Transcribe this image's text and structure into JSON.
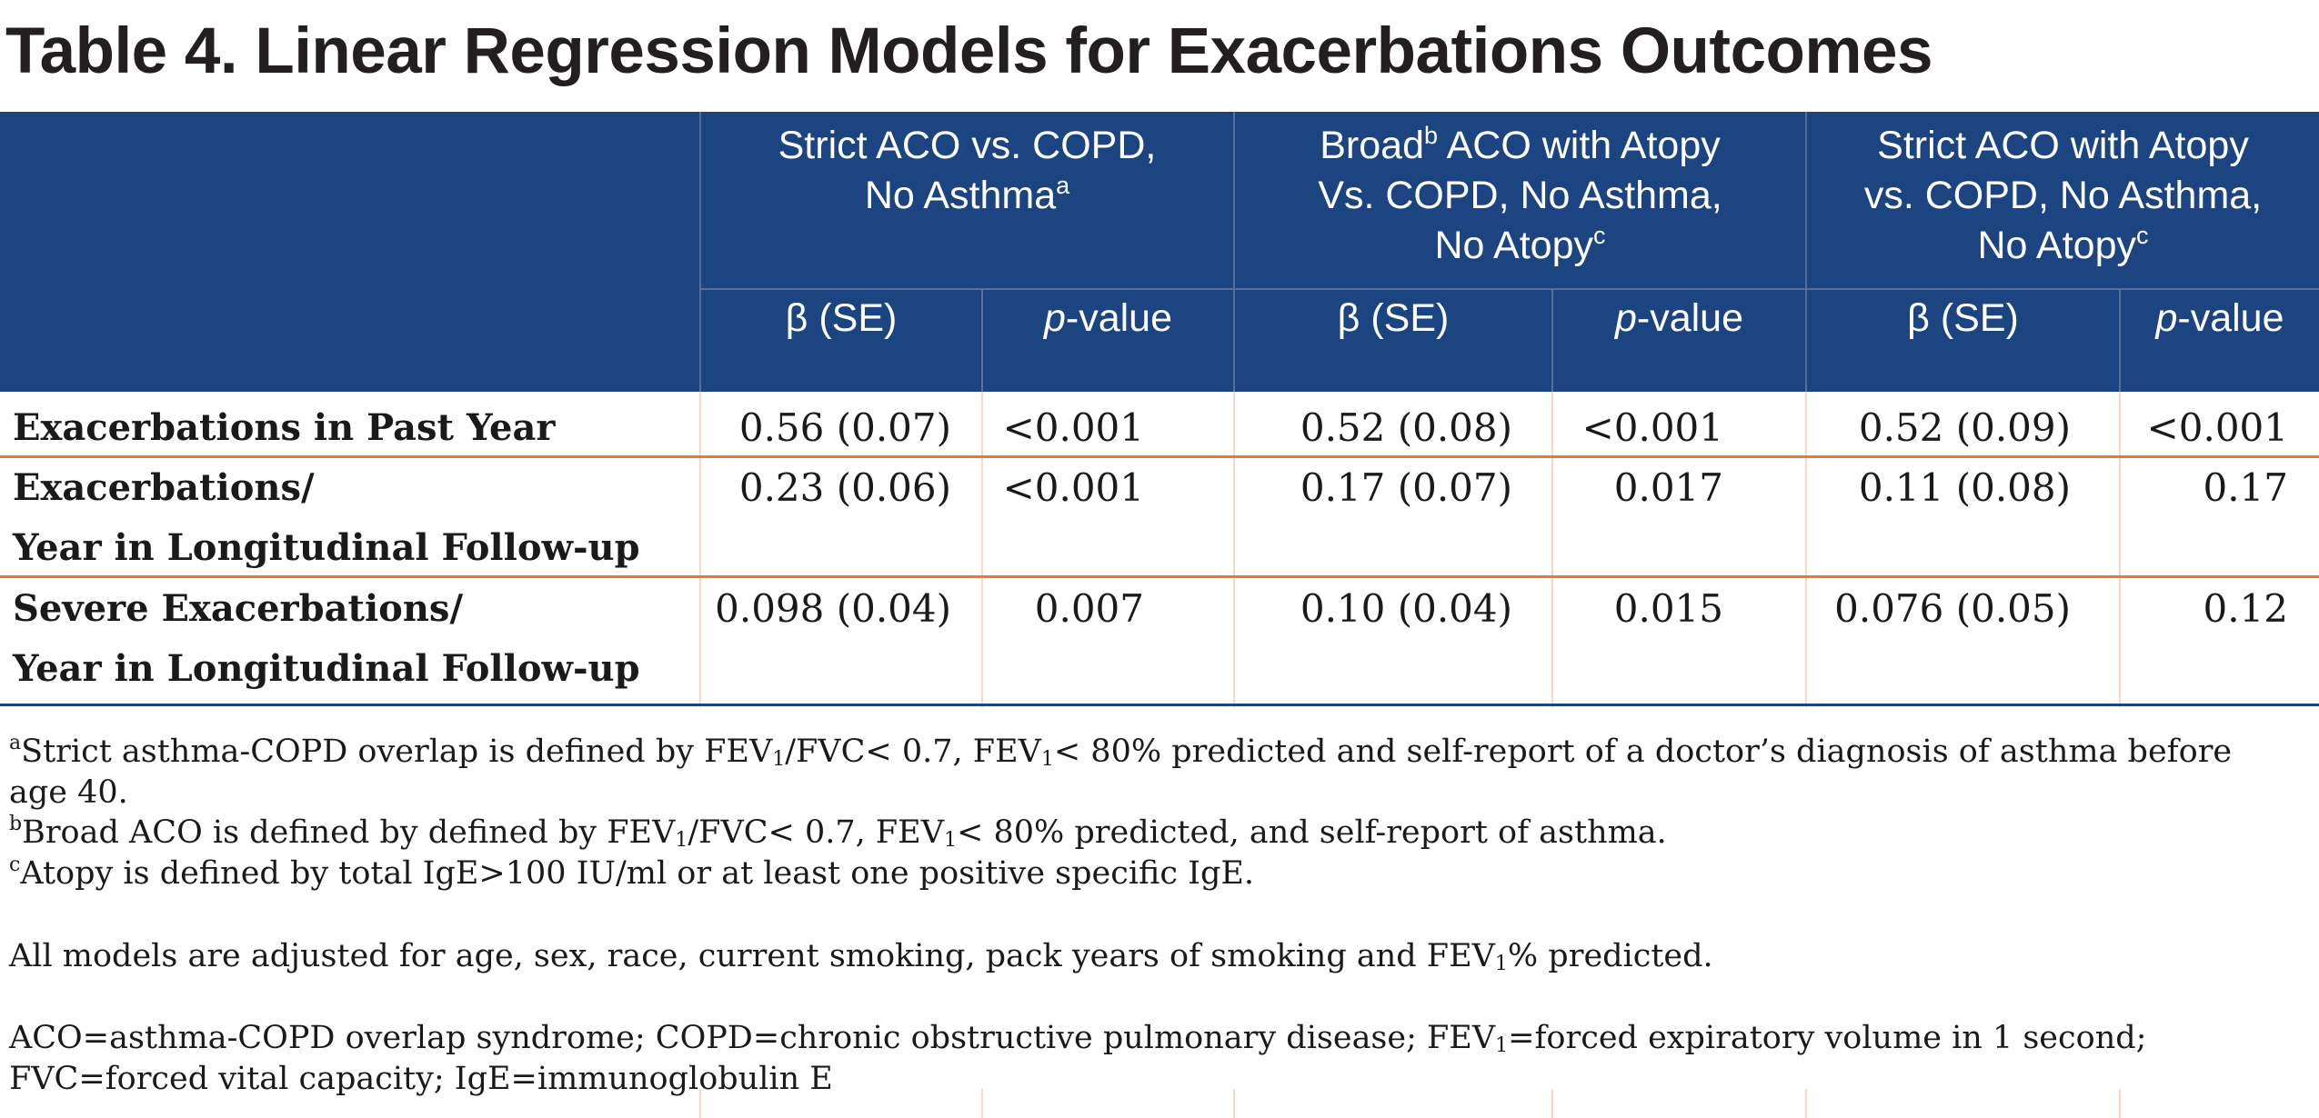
{
  "title": "Table 4. Linear Regression Models for Exacerbations Outcomes",
  "groups": [
    {
      "lines": [
        {
          "pre": "Strict ACO vs. COPD,",
          "sup": "",
          "post": ""
        },
        {
          "pre": "No Asthma",
          "sup": "a",
          "post": ""
        }
      ]
    },
    {
      "lines": [
        {
          "pre": "Broad",
          "sup": "b",
          "post": " ACO with Atopy"
        },
        {
          "pre": "Vs. COPD, No Asthma,",
          "sup": "",
          "post": ""
        },
        {
          "pre": "No Atopy",
          "sup": "c",
          "post": ""
        }
      ]
    },
    {
      "lines": [
        {
          "pre": "Strict ACO with Atopy",
          "sup": "",
          "post": ""
        },
        {
          "pre": "vs. COPD, No Asthma,",
          "sup": "",
          "post": ""
        },
        {
          "pre": "No Atopy",
          "sup": "c",
          "post": ""
        }
      ]
    }
  ],
  "columns": {
    "beta": "β (SE)",
    "p_italic": "p",
    "p_rest": "-value"
  },
  "rows": [
    {
      "label": [
        "Exacerbations in Past Year"
      ],
      "values": [
        "0.56 (0.07)",
        "<0.001",
        "0.52 (0.08)",
        "<0.001",
        "0.52 (0.09)",
        "<0.001"
      ]
    },
    {
      "label": [
        "Exacerbations/",
        "Year in Longitudinal Follow-up"
      ],
      "values": [
        "0.23 (0.06)",
        "<0.001",
        "0.17 (0.07)",
        "0.017",
        "0.11 (0.08)",
        "0.17"
      ]
    },
    {
      "label": [
        "Severe Exacerbations/",
        "Year in Longitudinal Follow-up"
      ],
      "values": [
        "0.098 (0.04)",
        "0.007",
        "0.10 (0.04)",
        "0.015",
        "0.076 (0.05)",
        "0.12"
      ]
    }
  ],
  "footnotes": {
    "a": {
      "sup": "a",
      "t1": "Strict asthma-COPD overlap is defined by FEV",
      "s1": "1",
      "t2": "/FVC< 0.7, FEV",
      "s2": "1",
      "t3": "< 80% predicted and self-report of a doctor’s diagnosis of asthma before",
      "t4": "age 40."
    },
    "b": {
      "sup": "b",
      "t1": "Broad ACO is defined by defined by FEV",
      "s1": "1",
      "t2": "/FVC< 0.7, FEV",
      "s2": "1",
      "t3": "< 80% predicted, and self-report of asthma."
    },
    "c": {
      "sup": "c",
      "t1": "Atopy is defined by total IgE>100 IU/ml or at least one positive specific IgE."
    },
    "adjusted": {
      "t1": "All models are adjusted for age, sex, race, current smoking, pack years of smoking and FEV",
      "s1": "1",
      "t2": "% predicted."
    },
    "abbrev": {
      "t1": "ACO=asthma-COPD overlap syndrome; COPD=chronic obstructive pulmonary disease; FEV",
      "s1": "1",
      "t2": "=forced expiratory volume in 1 second;",
      "t3": "FVC=forced vital capacity; IgE=immunoglobulin E"
    }
  }
}
